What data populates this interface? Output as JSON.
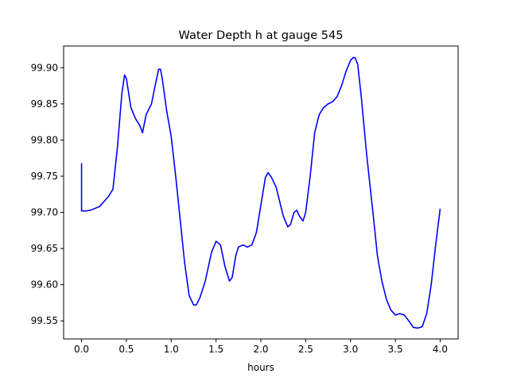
{
  "chart_data": {
    "type": "line",
    "title": "Water Depth h at gauge 545",
    "xlabel": "hours",
    "ylabel": "",
    "xlim": [
      -0.2,
      4.2
    ],
    "ylim": [
      99.525,
      99.93
    ],
    "x_ticks": [
      0.0,
      0.5,
      1.0,
      1.5,
      2.0,
      2.5,
      3.0,
      3.5,
      4.0
    ],
    "x_tick_labels": [
      "0.0",
      "0.5",
      "1.0",
      "1.5",
      "2.0",
      "2.5",
      "3.0",
      "3.5",
      "4.0"
    ],
    "y_ticks": [
      99.55,
      99.6,
      99.65,
      99.7,
      99.75,
      99.8,
      99.85,
      99.9
    ],
    "y_tick_labels": [
      "99.55",
      "99.60",
      "99.65",
      "99.70",
      "99.75",
      "99.80",
      "99.85",
      "99.90"
    ],
    "grid": false,
    "series": [
      {
        "color": "#0000ff",
        "x": [
          0.0,
          0.0,
          0.05,
          0.1,
          0.2,
          0.3,
          0.35,
          0.4,
          0.45,
          0.48,
          0.5,
          0.55,
          0.6,
          0.65,
          0.68,
          0.72,
          0.78,
          0.82,
          0.86,
          0.88,
          0.9,
          0.95,
          1.0,
          1.05,
          1.1,
          1.15,
          1.2,
          1.25,
          1.28,
          1.32,
          1.38,
          1.45,
          1.5,
          1.55,
          1.6,
          1.65,
          1.68,
          1.72,
          1.75,
          1.8,
          1.85,
          1.9,
          1.95,
          2.0,
          2.05,
          2.08,
          2.12,
          2.17,
          2.2,
          2.25,
          2.3,
          2.33,
          2.37,
          2.4,
          2.43,
          2.47,
          2.5,
          2.55,
          2.6,
          2.65,
          2.7,
          2.75,
          2.8,
          2.85,
          2.9,
          2.95,
          3.0,
          3.03,
          3.05,
          3.08,
          3.12,
          3.18,
          3.25,
          3.3,
          3.35,
          3.4,
          3.45,
          3.5,
          3.55,
          3.6,
          3.65,
          3.7,
          3.75,
          3.8,
          3.85,
          3.9,
          3.95,
          4.0
        ],
        "y": [
          99.768,
          99.702,
          99.702,
          99.703,
          99.708,
          99.722,
          99.732,
          99.79,
          99.865,
          99.89,
          99.885,
          99.845,
          99.83,
          99.82,
          99.81,
          99.835,
          99.85,
          99.875,
          99.898,
          99.898,
          99.885,
          99.84,
          99.805,
          99.75,
          99.69,
          99.63,
          99.585,
          99.572,
          99.572,
          99.582,
          99.605,
          99.645,
          99.66,
          99.655,
          99.625,
          99.605,
          99.61,
          99.64,
          99.652,
          99.655,
          99.652,
          99.655,
          99.672,
          99.71,
          99.748,
          99.755,
          99.748,
          99.735,
          99.72,
          99.695,
          99.68,
          99.683,
          99.7,
          99.703,
          99.695,
          99.688,
          99.7,
          99.75,
          99.81,
          99.835,
          99.845,
          99.85,
          99.853,
          99.86,
          99.875,
          99.895,
          99.91,
          99.914,
          99.914,
          99.905,
          99.86,
          99.78,
          99.7,
          99.64,
          99.605,
          99.58,
          99.565,
          99.558,
          99.56,
          99.558,
          99.55,
          99.541,
          99.54,
          99.542,
          99.56,
          99.6,
          99.655,
          99.705
        ]
      }
    ]
  }
}
